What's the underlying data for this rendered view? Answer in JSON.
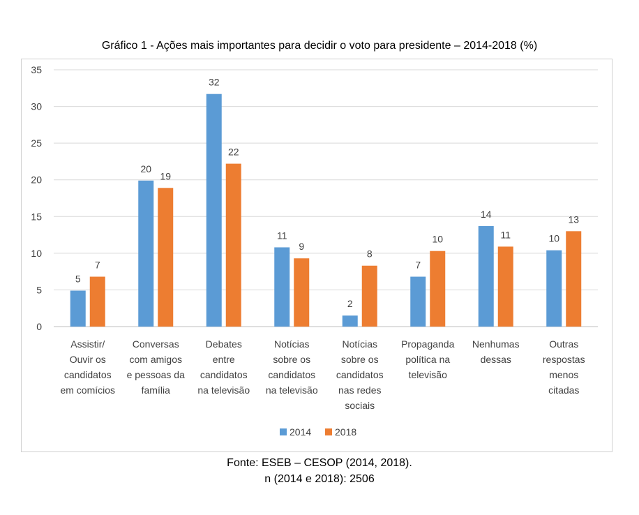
{
  "chart_data": {
    "type": "bar",
    "title": "Gráfico 1 - Ações mais importantes para decidir o voto para presidente – 2014-2018 (%)",
    "categories": [
      [
        "Assistir/",
        "Ouvir os",
        "candidatos",
        "em comícios"
      ],
      [
        "Conversas",
        "com amigos",
        "e pessoas da",
        "família"
      ],
      [
        "Debates",
        "entre",
        "candidatos",
        "na televisão"
      ],
      [
        "Notícias",
        "sobre os",
        "candidatos",
        "na televisão"
      ],
      [
        "Notícias",
        "sobre os",
        "candidatos",
        "nas redes",
        "sociais"
      ],
      [
        "Propaganda",
        "política na",
        "televisão"
      ],
      [
        "Nenhumas",
        "dessas"
      ],
      [
        "Outras",
        "respostas",
        "menos",
        "citadas"
      ]
    ],
    "series": [
      {
        "name": "2014",
        "color": "#5B9BD5",
        "values": [
          4.9,
          19.9,
          31.7,
          10.8,
          1.5,
          6.8,
          13.7,
          10.4
        ],
        "labels": [
          "5",
          "20",
          "32",
          "11",
          "2",
          "7",
          "14",
          "10"
        ]
      },
      {
        "name": "2018",
        "color": "#ED7D31",
        "values": [
          6.8,
          18.9,
          22.2,
          9.3,
          8.3,
          10.3,
          10.9,
          13.0
        ],
        "labels": [
          "7",
          "19",
          "22",
          "9",
          "8",
          "10",
          "11",
          "13"
        ]
      }
    ],
    "ylim": [
      0,
      35
    ],
    "yticks": [
      "0",
      "5",
      "10",
      "15",
      "20",
      "25",
      "30",
      "35"
    ],
    "grid": true,
    "legend_position": "bottom"
  },
  "footer": {
    "source": "Fonte: ESEB – CESOP (2014, 2018).",
    "n": "n (2014 e 2018): 2506"
  }
}
